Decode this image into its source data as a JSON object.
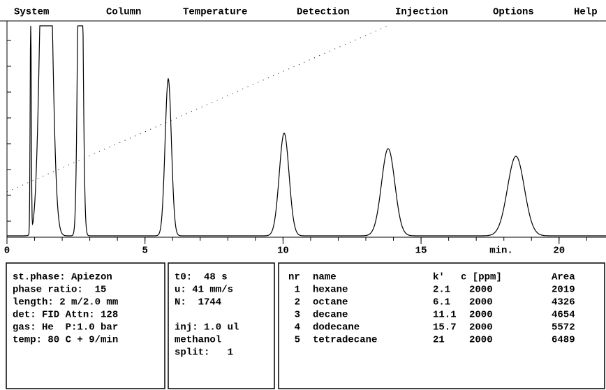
{
  "menu": [
    "System",
    "Column",
    "Temperature",
    "Detection",
    "Injection",
    "Options",
    "Help"
  ],
  "chromatogram": {
    "xlim": [
      0,
      21.7
    ],
    "xticks": [
      0,
      5,
      10,
      15,
      20
    ],
    "unit_label": "min."
  },
  "column_panel": [
    "st.phase: Apiezon",
    "phase ratio:  15",
    "length: 2 m/2.0 mm",
    "det: FID Attn: 128",
    "gas: He  P:1.0 bar",
    "temp: 80 C + 9/min"
  ],
  "run_panel": {
    "top": [
      "t0:  48 s",
      "u: 41 mm/s",
      "N:  1744"
    ],
    "bottom": [
      "inj: 1.0 ul",
      "methanol",
      "split:   1"
    ]
  },
  "results": {
    "header": [
      "nr",
      "name",
      "k'",
      "c [ppm]",
      "Area"
    ],
    "rows": [
      [
        "1",
        "hexane",
        "2.1",
        "2000",
        "2019"
      ],
      [
        "2",
        "octane",
        "6.1",
        "2000",
        "4326"
      ],
      [
        "3",
        "decane",
        "11.1",
        "2000",
        "4654"
      ],
      [
        "4",
        "dodecane",
        "15.7",
        "2000",
        "5572"
      ],
      [
        "5",
        "tetradecane",
        "21",
        "2000",
        "6489"
      ]
    ]
  }
}
